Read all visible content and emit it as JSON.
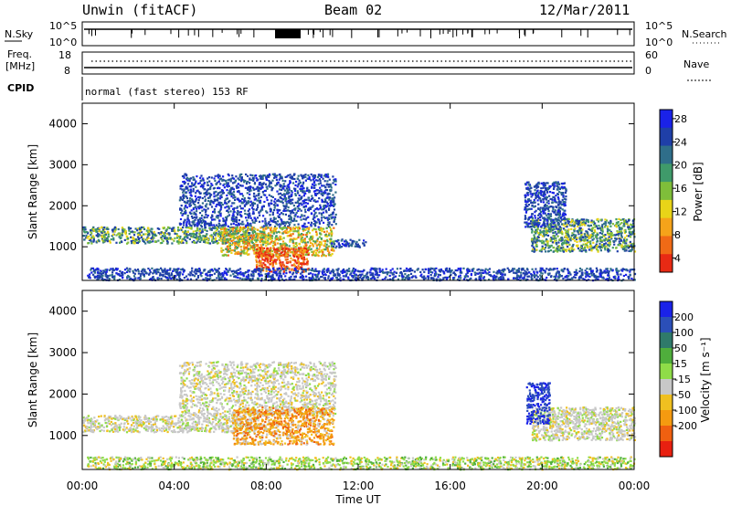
{
  "header": {
    "station": "Unwin (fitACF)",
    "beam": "Beam 02",
    "date": "12/Mar/2011"
  },
  "status_strips": {
    "nsky": {
      "label": "N.Sky",
      "ticks": [
        "10^5",
        "10^0"
      ]
    },
    "nsearch": {
      "label": "N.Search",
      "ticks": [
        "10^5",
        "10^0"
      ]
    },
    "freq": {
      "label_line1": "Freq.",
      "label_line2": "[MHz]",
      "ticks": [
        "18",
        "8"
      ]
    },
    "nave": {
      "label": "Nave",
      "ticks": [
        "60",
        "0"
      ]
    },
    "cpid": {
      "label": "CPID",
      "text": "normal (fast stereo) 153 RF"
    }
  },
  "chart_data": [
    {
      "type": "heatmap",
      "name": "power",
      "ylabel": "Slant Range [km]",
      "y_ticks": [
        "1000",
        "2000",
        "3000",
        "4000"
      ],
      "ylim": [
        180,
        4500
      ],
      "x_ticks": [
        "00:00",
        "04:00",
        "08:00",
        "12:00",
        "16:00",
        "20:00",
        "00:00"
      ],
      "xlim_hours": [
        0,
        24
      ],
      "colorbar": {
        "label": "Power [dB]",
        "ticks": [
          "4",
          "8",
          "12",
          "16",
          "20",
          "24",
          "28"
        ],
        "range": [
          0,
          30
        ],
        "colors": [
          "#1a22e8",
          "#1f3fa8",
          "#2f6e8a",
          "#3f9a6a",
          "#7fbe3a",
          "#e8d418",
          "#f5a31a",
          "#f06a16",
          "#e82a14"
        ]
      },
      "echo_regions": [
        {
          "t": [
            0.0,
            7.6
          ],
          "range": [
            1100,
            1500
          ],
          "level": "mid"
        },
        {
          "t": [
            4.2,
            11.0
          ],
          "range": [
            1500,
            2800
          ],
          "level": "low"
        },
        {
          "t": [
            6.0,
            10.9
          ],
          "range": [
            800,
            1500
          ],
          "level": "high"
        },
        {
          "t": [
            7.5,
            9.8
          ],
          "range": [
            400,
            1000
          ],
          "level": "max"
        },
        {
          "t": [
            10.8,
            12.3
          ],
          "range": [
            1000,
            1200
          ],
          "level": "low"
        },
        {
          "t": [
            19.5,
            24.0
          ],
          "range": [
            900,
            1700
          ],
          "level": "mid"
        },
        {
          "t": [
            19.2,
            21.0
          ],
          "range": [
            1500,
            2600
          ],
          "level": "low"
        },
        {
          "t": [
            0.2,
            24.0
          ],
          "range": [
            200,
            500
          ],
          "level": "low"
        }
      ]
    },
    {
      "type": "heatmap",
      "name": "velocity",
      "ylabel": "Slant Range [km]",
      "y_ticks": [
        "1000",
        "2000",
        "3000",
        "4000"
      ],
      "ylim": [
        180,
        4500
      ],
      "x_ticks": [
        "00:00",
        "04:00",
        "08:00",
        "12:00",
        "16:00",
        "20:00",
        "00:00"
      ],
      "xlabel": "Time UT",
      "xlim_hours": [
        0,
        24
      ],
      "colorbar": {
        "label": "Velocity [m s⁻¹]",
        "ticks": [
          "200",
          "100",
          "50",
          "15",
          "-15",
          "-50",
          "-100",
          "-200"
        ],
        "range": [
          -250,
          250
        ],
        "colors": [
          "#1a22e8",
          "#2b4fb8",
          "#2f7a6a",
          "#4fae3c",
          "#8fdc48",
          "#c8c8c8",
          "#f0c020",
          "#f59a10",
          "#f06010",
          "#e82010"
        ]
      },
      "echo_regions": [
        {
          "t": [
            0.0,
            7.6
          ],
          "range": [
            1100,
            1500
          ],
          "level": "near-zero"
        },
        {
          "t": [
            4.2,
            11.0
          ],
          "range": [
            1500,
            2800
          ],
          "level": "near-zero"
        },
        {
          "t": [
            6.5,
            10.9
          ],
          "range": [
            800,
            1700
          ],
          "level": "negative"
        },
        {
          "t": [
            19.5,
            24.0
          ],
          "range": [
            900,
            1700
          ],
          "level": "near-zero"
        },
        {
          "t": [
            19.3,
            20.3
          ],
          "range": [
            1300,
            2300
          ],
          "level": "positive"
        },
        {
          "t": [
            0.2,
            24.0
          ],
          "range": [
            200,
            500
          ],
          "level": "small-positive"
        }
      ]
    }
  ]
}
